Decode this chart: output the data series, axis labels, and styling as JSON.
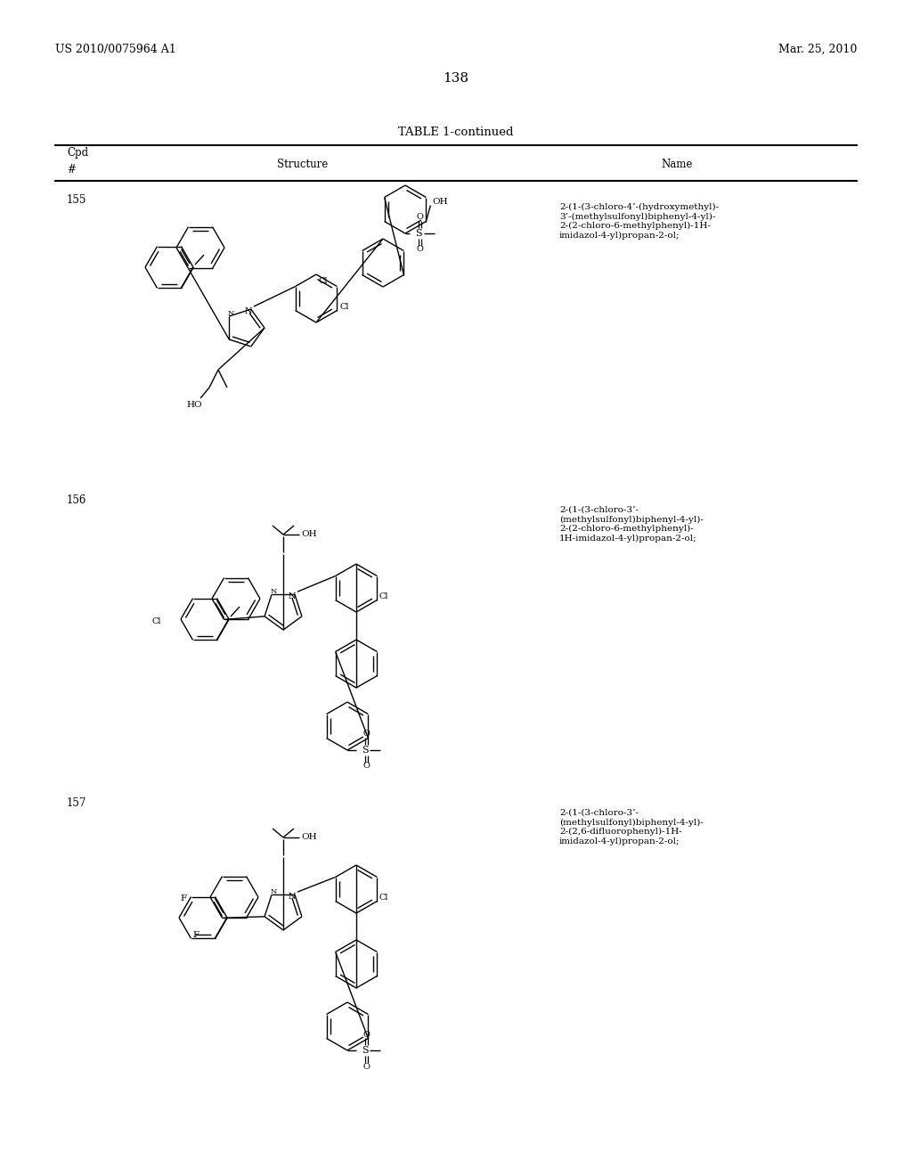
{
  "page_number": "138",
  "patent_left": "US 2010/0075964 A1",
  "patent_right": "Mar. 25, 2010",
  "table_title": "TABLE 1-continued",
  "col_cpd": "Cpd",
  "col_hash": "#",
  "col_structure": "Structure",
  "col_name": "Name",
  "bg": "#ffffff",
  "compounds": [
    {
      "number": "155",
      "name": "2-(1-(3-chloro-4’-(hydroxymethyl)-\n3’-(methylsulfonyl)biphenyl-4-yl)-\n2-(2-chloro-6-methylphenyl)-1H-\nimidazol-4-yl)propan-2-ol;"
    },
    {
      "number": "156",
      "name": "2-(1-(3-chloro-3’-\n(methylsulfonyl)biphenyl-4-yl)-\n2-(2-chloro-6-methylphenyl)-\n1H-imidazol-4-yl)propan-2-ol;"
    },
    {
      "number": "157",
      "name": "2-(1-(3-chloro-3’-\n(methylsulfonyl)biphenyl-4-yl)-\n2-(2,6-difluorophenyl)-1H-\nimidazol-4-yl)propan-2-ol;"
    }
  ]
}
